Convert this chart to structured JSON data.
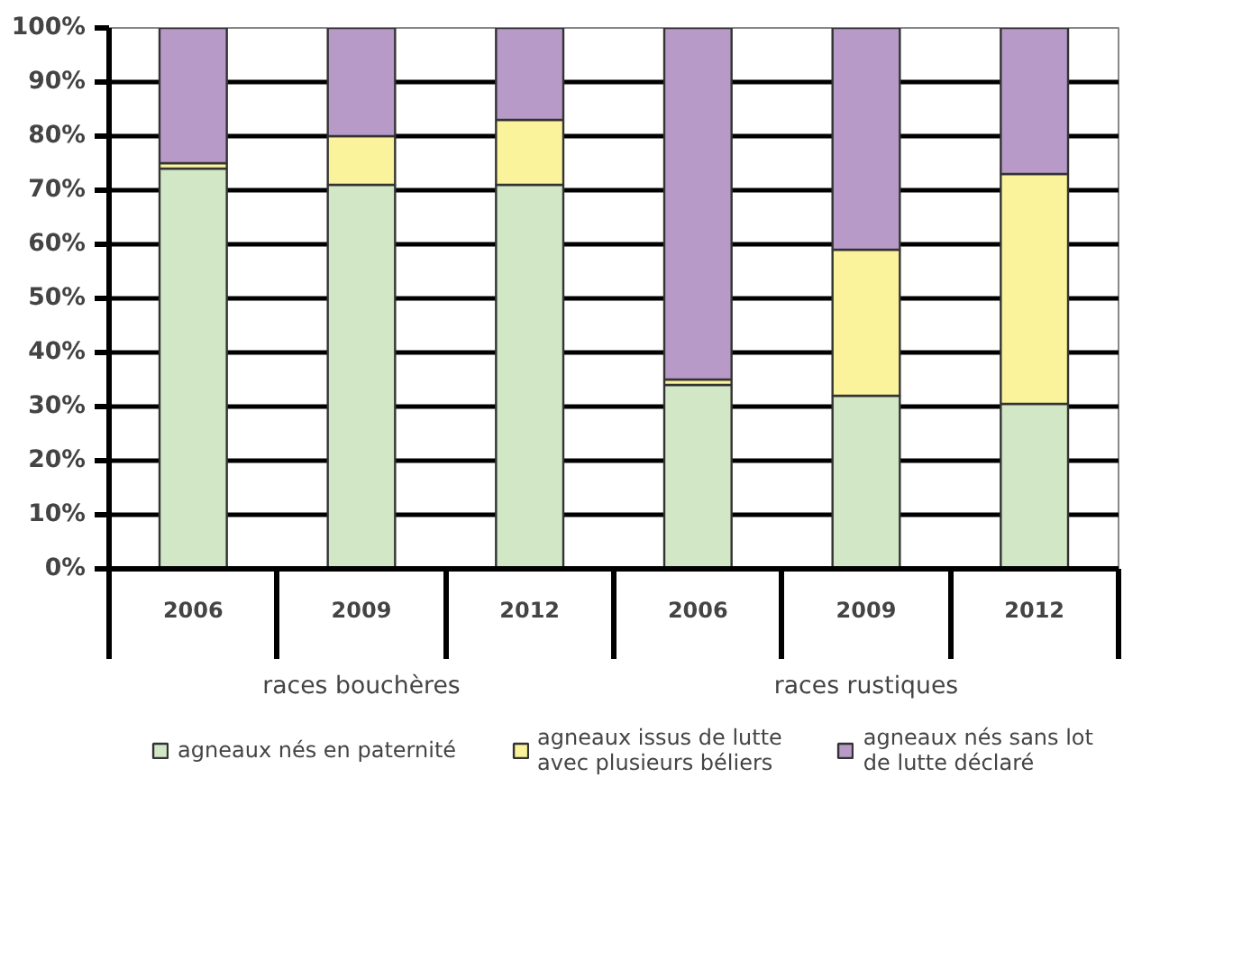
{
  "chart_data": {
    "type": "bar",
    "stacked": true,
    "categories": [
      "2006",
      "2009",
      "2012",
      "2006",
      "2009",
      "2012"
    ],
    "series": [
      {
        "name": "agneaux nés en paternité",
        "color": "#d1e7c5",
        "values": [
          74,
          71,
          71,
          34,
          32,
          30.5
        ]
      },
      {
        "name": "agneaux issus de lutte\navec plusieurs béliers",
        "color": "#faf39b",
        "values": [
          1,
          9,
          12,
          1,
          27,
          42.5
        ]
      },
      {
        "name": "agneaux nés sans lot\nde lutte déclaré",
        "color": "#b89ac8",
        "values": [
          25,
          20,
          17,
          65,
          41,
          27
        ]
      }
    ],
    "annotations": [
      "races bouchères",
      "races rustiques"
    ],
    "ylim": [
      0,
      100
    ],
    "yticks": [
      {
        "value": 0,
        "label": "0%"
      },
      {
        "value": 10,
        "label": "10%"
      },
      {
        "value": 20,
        "label": "20%"
      },
      {
        "value": 30,
        "label": "30%"
      },
      {
        "value": 40,
        "label": "40%"
      },
      {
        "value": 50,
        "label": "50%"
      },
      {
        "value": 60,
        "label": "60%"
      },
      {
        "value": 70,
        "label": "70%"
      },
      {
        "value": 80,
        "label": "80%"
      },
      {
        "value": 90,
        "label": "90%"
      },
      {
        "value": 100,
        "label": "100%"
      }
    ],
    "grid": "y",
    "legend": "bottom"
  }
}
